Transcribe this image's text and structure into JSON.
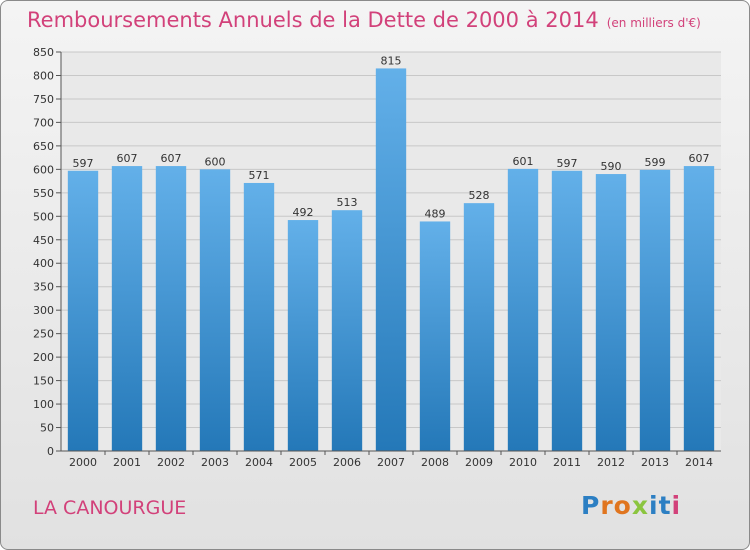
{
  "title": "Remboursements Annuels de la Dette de 2000 à 2014",
  "unit": "(en milliers d'€)",
  "commune": "LA CANOURGUE",
  "logo": {
    "text": "Proxiti",
    "letter_colors": [
      "#2c7fc3",
      "#e0751f",
      "#e0751f",
      "#8bc53f",
      "#2c7fc3",
      "#2c7fc3",
      "#d2417a"
    ]
  },
  "colors": {
    "accent": "#d2417a",
    "bar_top": "#63b0e9",
    "bar_bottom": "#2478b8"
  },
  "chart_data": {
    "type": "bar",
    "title": "Remboursements Annuels de la Dette de 2000 à 2014",
    "ylabel": "",
    "xlabel": "",
    "categories": [
      "2000",
      "2001",
      "2002",
      "2003",
      "2004",
      "2005",
      "2006",
      "2007",
      "2008",
      "2009",
      "2010",
      "2011",
      "2012",
      "2013",
      "2014"
    ],
    "values": [
      597,
      607,
      607,
      600,
      571,
      492,
      513,
      815,
      489,
      528,
      601,
      597,
      590,
      599,
      607
    ],
    "ylim": [
      0,
      850
    ],
    "ytick_step": 50,
    "grid": true,
    "legend": "none"
  }
}
